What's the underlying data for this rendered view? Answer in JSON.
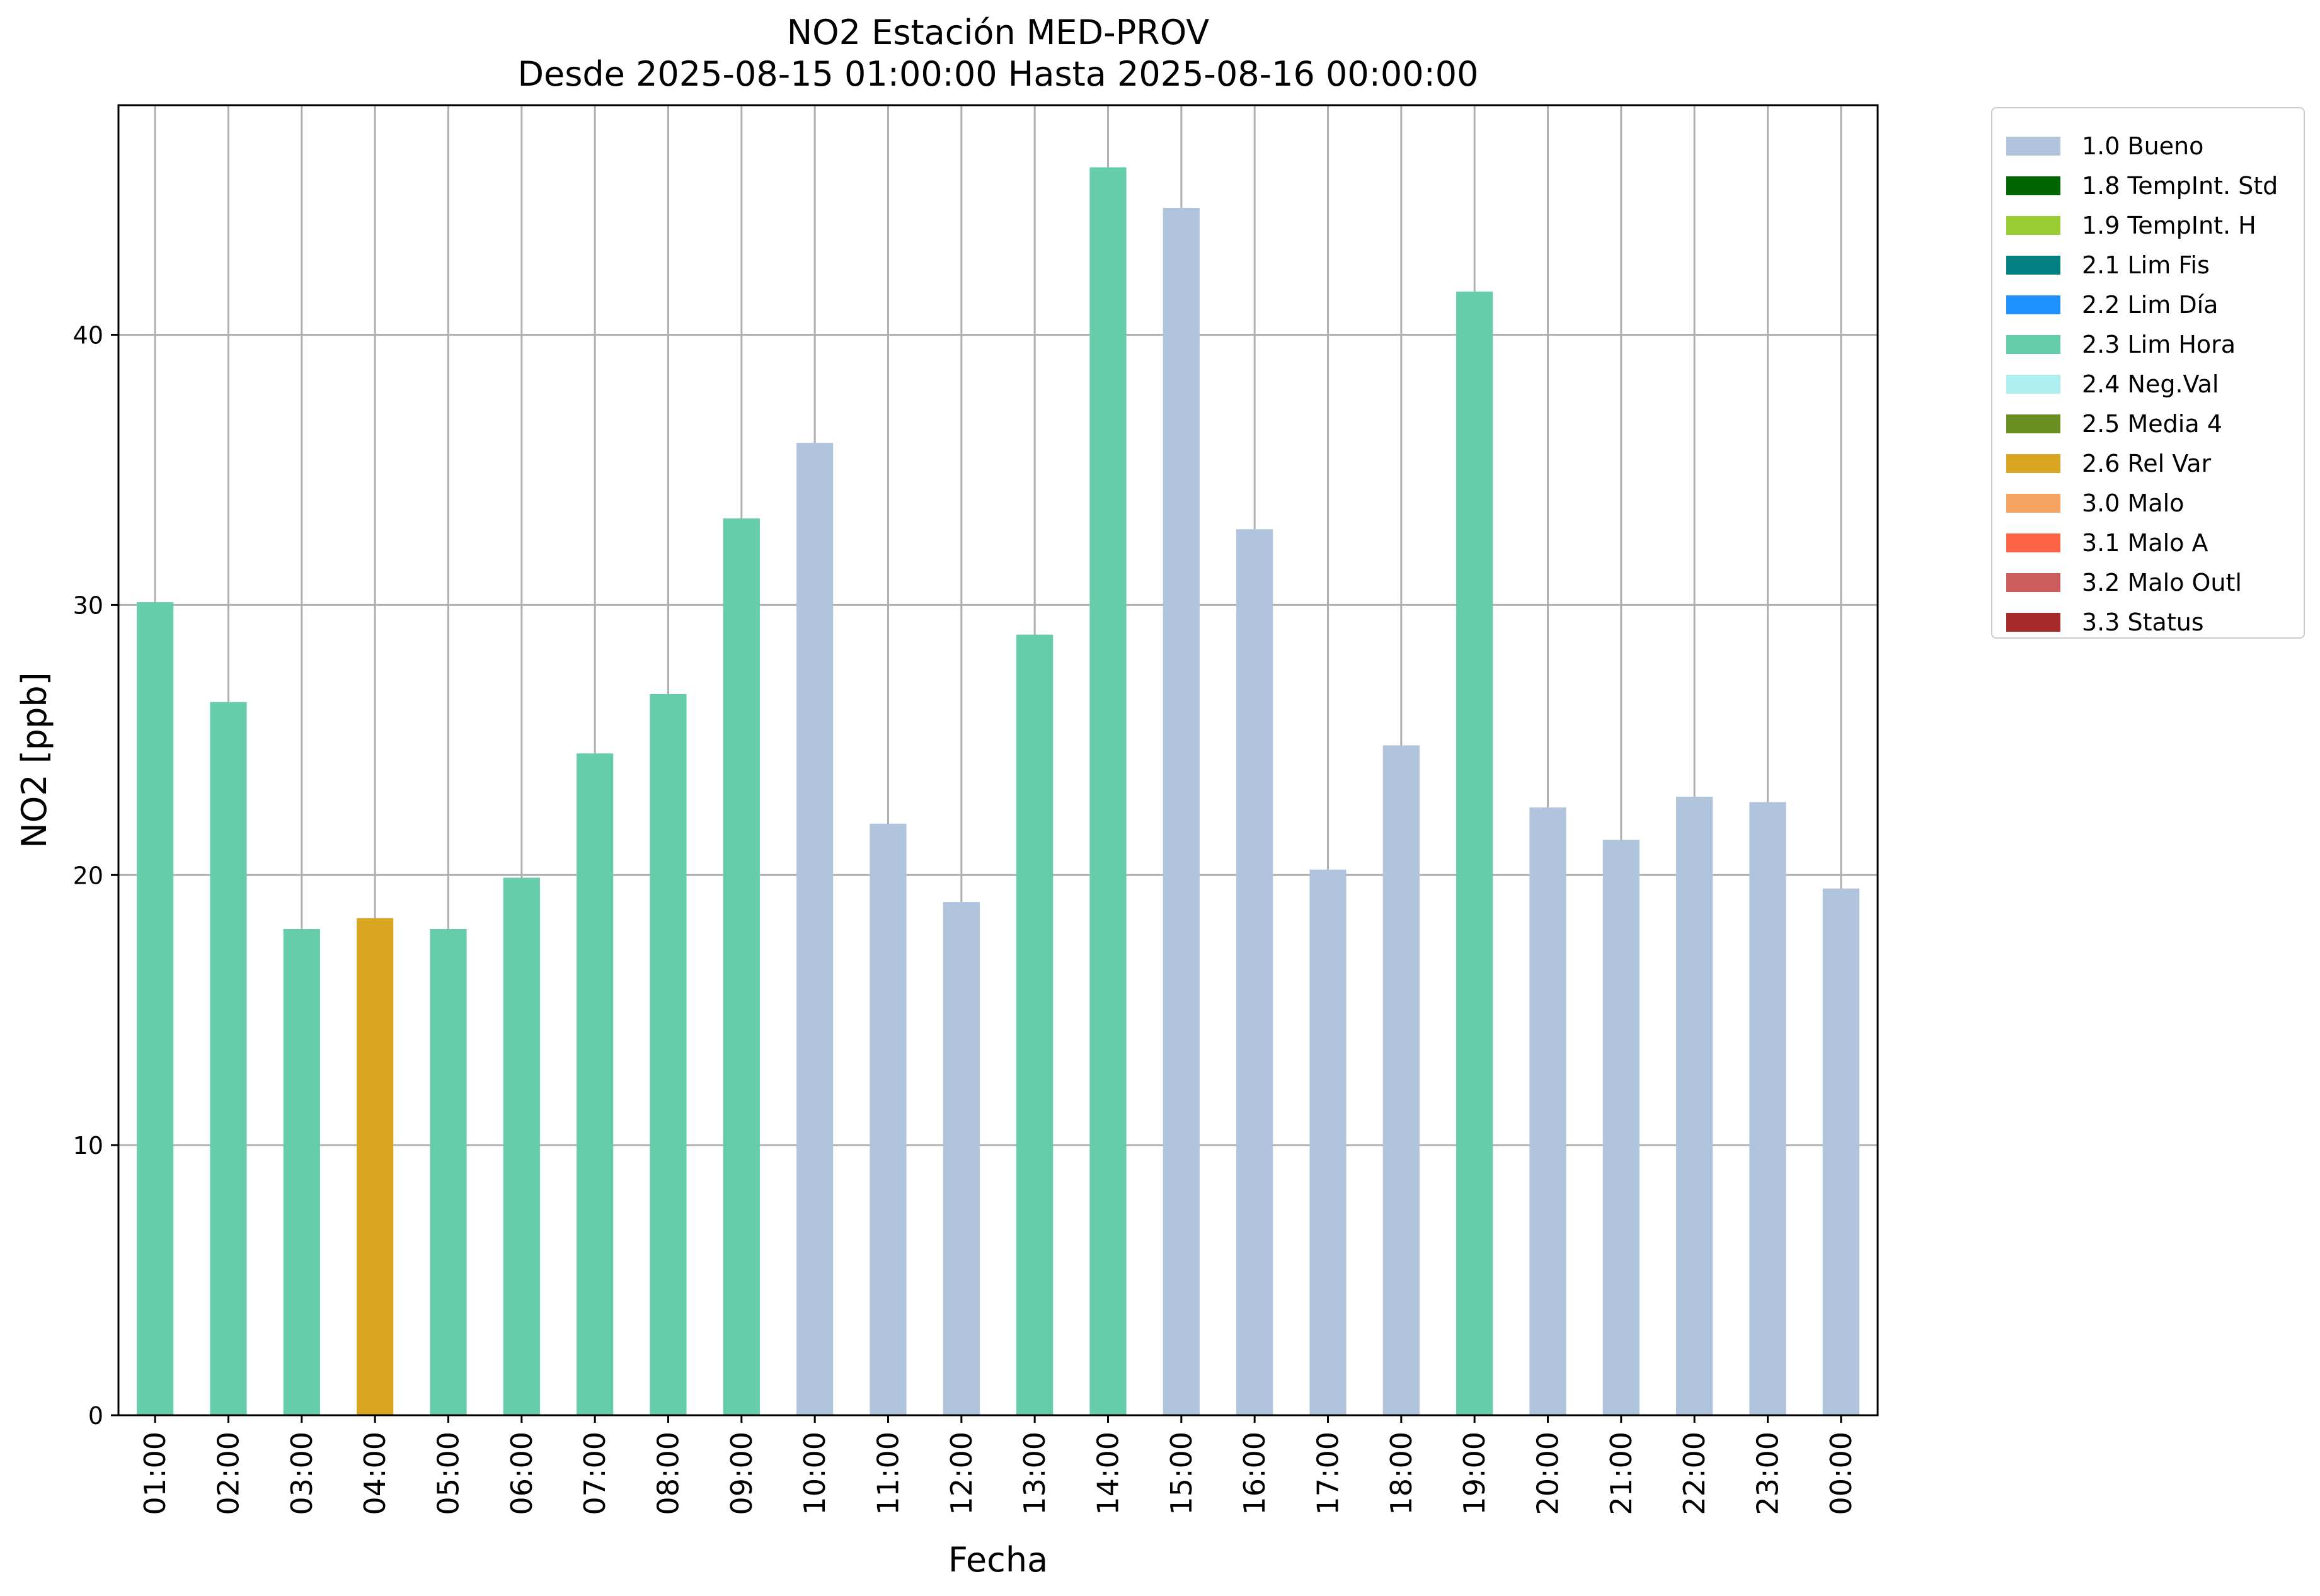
{
  "chart_data": {
    "type": "bar",
    "title": "NO2 Estación MED-PROV",
    "subtitle": "Desde 2025-08-15 01:00:00 Hasta 2025-08-16 00:00:00",
    "xlabel": "Fecha",
    "ylabel": "NO2 [ppb]",
    "ylim": [
      0,
      48.5
    ],
    "yticks": [
      0,
      10,
      20,
      30,
      40
    ],
    "grid": true,
    "legend_position": "outside-top-right",
    "categories": [
      "01:00",
      "02:00",
      "03:00",
      "04:00",
      "05:00",
      "06:00",
      "07:00",
      "08:00",
      "09:00",
      "10:00",
      "11:00",
      "12:00",
      "13:00",
      "14:00",
      "15:00",
      "16:00",
      "17:00",
      "18:00",
      "19:00",
      "20:00",
      "21:00",
      "22:00",
      "23:00",
      "00:00"
    ],
    "values": [
      30.1,
      26.4,
      18.0,
      18.4,
      18.0,
      19.9,
      24.5,
      26.7,
      33.2,
      36.0,
      21.9,
      19.0,
      28.9,
      46.2,
      44.7,
      32.8,
      20.2,
      24.8,
      41.6,
      22.5,
      21.3,
      22.9,
      22.7,
      19.5
    ],
    "value_flags": [
      "2.3 Lim Hora",
      "2.3 Lim Hora",
      "2.3 Lim Hora",
      "2.6 Rel Var",
      "2.3 Lim Hora",
      "2.3 Lim Hora",
      "2.3 Lim Hora",
      "2.3 Lim Hora",
      "2.3 Lim Hora",
      "1.0 Bueno",
      "1.0 Bueno",
      "1.0 Bueno",
      "2.3 Lim Hora",
      "2.3 Lim Hora",
      "1.0 Bueno",
      "1.0 Bueno",
      "1.0 Bueno",
      "1.0 Bueno",
      "2.3 Lim Hora",
      "1.0 Bueno",
      "1.0 Bueno",
      "1.0 Bueno",
      "1.0 Bueno",
      "1.0 Bueno"
    ],
    "legend": [
      {
        "label": "1.0 Bueno",
        "color": "#b0c4de"
      },
      {
        "label": "1.8 TempInt. Std",
        "color": "#006400"
      },
      {
        "label": "1.9 TempInt. H",
        "color": "#9acd32"
      },
      {
        "label": "2.1 Lim Fis",
        "color": "#008080"
      },
      {
        "label": "2.2 Lim Día",
        "color": "#1e90ff"
      },
      {
        "label": "2.3 Lim Hora",
        "color": "#66cdaa"
      },
      {
        "label": "2.4 Neg.Val",
        "color": "#afeeee"
      },
      {
        "label": "2.5 Media 4",
        "color": "#6b8e23"
      },
      {
        "label": "2.6 Rel Var",
        "color": "#daa520"
      },
      {
        "label": "3.0 Malo",
        "color": "#f4a460"
      },
      {
        "label": "3.1 Malo A",
        "color": "#ff6347"
      },
      {
        "label": "3.2 Malo Outl",
        "color": "#cd5c5c"
      },
      {
        "label": "3.3 Status",
        "color": "#a52a2a"
      }
    ]
  }
}
